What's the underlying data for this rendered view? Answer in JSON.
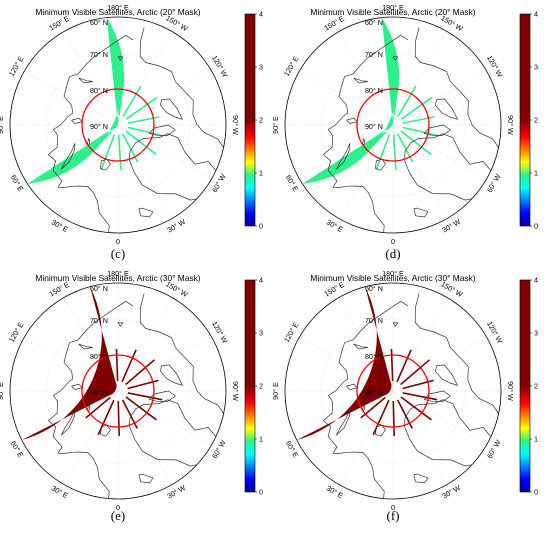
{
  "figure": {
    "panels": [
      {
        "id": "c",
        "title": "Minimum Visible Satellites, Arctic (20° Mask)",
        "label": "(c)",
        "mask_deg": 20,
        "visible_satellites": 2,
        "wedge_color": "#2ef08a",
        "wedge_lon_range_deg": [
          174,
          57
        ]
      },
      {
        "id": "d",
        "title": "Minimum Visible Satellites, Arctic (20° Mask)",
        "label": "(d)",
        "mask_deg": 20,
        "visible_satellites": 2,
        "wedge_color": "#2ef08a",
        "wedge_lon_range_deg": [
          174,
          57
        ]
      },
      {
        "id": "e",
        "title": "Minimum Visible Satellites, Arctic (30° Mask)",
        "label": "(e)",
        "mask_deg": 30,
        "visible_satellites": 4,
        "wedge_color": "#800000",
        "wedge_lon_range_deg": [
          165,
          63
        ]
      },
      {
        "id": "f",
        "title": "Minimum Visible Satellites, Arctic (30° Mask)",
        "label": "(f)",
        "mask_deg": 30,
        "visible_satellites": 4,
        "wedge_color": "#800000",
        "wedge_lon_range_deg": [
          165,
          63
        ]
      }
    ],
    "latitude_labels": [
      "60° N",
      "70° N",
      "80° N",
      "90° N"
    ],
    "longitude_labels": [
      "180° E",
      "150° E",
      "120° E",
      "90° E",
      "60° E",
      "30° E",
      "0",
      "30° W",
      "60° W",
      "90° W",
      "120° W",
      "150° W"
    ],
    "highlight_circle": {
      "latitude_deg": 80,
      "color": "#ff0000"
    },
    "colorbar": {
      "ticks": [
        "4",
        "3",
        "2",
        "1",
        "0"
      ],
      "range": [
        0,
        4
      ],
      "colors": [
        "#00008f",
        "#0000ff",
        "#0080ff",
        "#00ffff",
        "#2ef08a",
        "#ffff00",
        "#ff8000",
        "#ff0000",
        "#800000"
      ]
    }
  }
}
